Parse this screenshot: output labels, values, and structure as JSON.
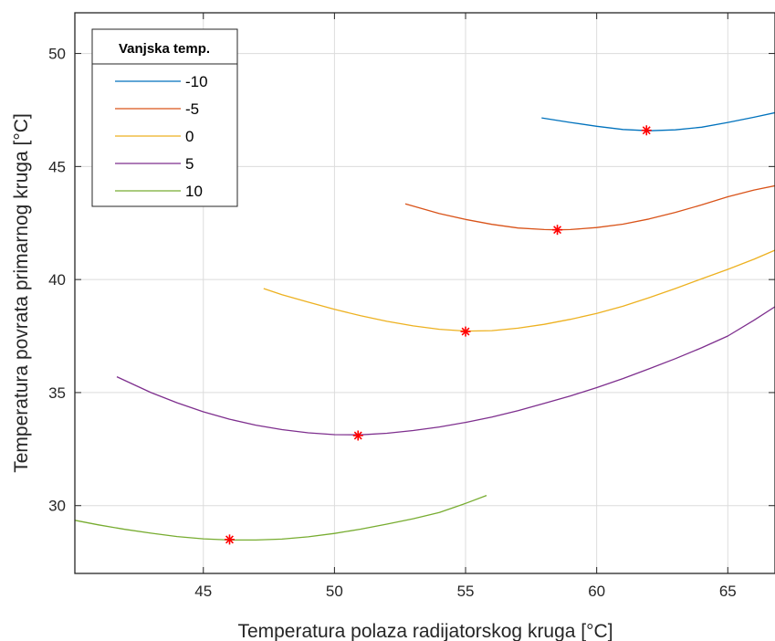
{
  "chart_data": {
    "type": "line",
    "xlabel": "Temperatura polaza radijatorskog kruga [°C]",
    "ylabel": "Temperatura povrata primarnog kruga [°C]",
    "xlim": [
      40.1,
      66.8
    ],
    "ylim": [
      27.0,
      51.8
    ],
    "xticks": [
      45,
      50,
      55,
      60,
      65
    ],
    "yticks": [
      30,
      35,
      40,
      45,
      50
    ],
    "grid": true,
    "legend": {
      "title": "Vanjska temp.",
      "placement": "top-left"
    },
    "series": [
      {
        "name": "-10",
        "color": "#0072BD",
        "x": [
          57.9,
          59.0,
          60.0,
          61.0,
          62.0,
          63.0,
          64.0,
          65.0,
          66.0,
          66.8
        ],
        "y": [
          47.15,
          46.95,
          46.78,
          46.64,
          46.58,
          46.62,
          46.74,
          46.95,
          47.18,
          47.38
        ]
      },
      {
        "name": "-5",
        "color": "#D95319",
        "x": [
          52.7,
          54.0,
          55.0,
          56.0,
          57.0,
          58.0,
          58.5,
          59.0,
          60.0,
          61.0,
          62.0,
          63.0,
          64.0,
          65.0,
          66.0,
          66.8
        ],
        "y": [
          43.35,
          42.92,
          42.66,
          42.44,
          42.28,
          42.21,
          42.2,
          42.21,
          42.3,
          42.45,
          42.68,
          42.97,
          43.3,
          43.66,
          43.96,
          44.15
        ]
      },
      {
        "name": "0",
        "color": "#EDB120",
        "x": [
          47.3,
          48.0,
          49.0,
          50.0,
          51.0,
          52.0,
          53.0,
          54.0,
          55.0,
          56.0,
          57.0,
          58.0,
          59.0,
          60.0,
          61.0,
          62.0,
          63.0,
          64.0,
          65.0,
          66.0,
          66.8
        ],
        "y": [
          39.6,
          39.33,
          39.0,
          38.68,
          38.4,
          38.15,
          37.95,
          37.8,
          37.72,
          37.74,
          37.85,
          38.02,
          38.24,
          38.5,
          38.82,
          39.2,
          39.6,
          40.03,
          40.45,
          40.9,
          41.3
        ]
      },
      {
        "name": "5",
        "color": "#7E2F8E",
        "x": [
          41.7,
          43.0,
          44.0,
          45.0,
          46.0,
          47.0,
          48.0,
          49.0,
          50.0,
          51.0,
          52.0,
          53.0,
          54.0,
          55.0,
          56.0,
          57.0,
          58.0,
          59.0,
          60.0,
          61.0,
          62.0,
          63.0,
          64.0,
          65.0,
          66.0,
          66.8
        ],
        "y": [
          35.7,
          35.0,
          34.55,
          34.15,
          33.82,
          33.56,
          33.36,
          33.22,
          33.14,
          33.13,
          33.2,
          33.32,
          33.48,
          33.68,
          33.92,
          34.2,
          34.52,
          34.85,
          35.22,
          35.62,
          36.05,
          36.5,
          36.98,
          37.5,
          38.2,
          38.8
        ]
      },
      {
        "name": "10",
        "color": "#77AC30",
        "x": [
          40.1,
          41.0,
          42.0,
          43.0,
          44.0,
          45.0,
          46.0,
          47.0,
          48.0,
          49.0,
          50.0,
          51.0,
          52.0,
          53.0,
          54.0,
          55.0,
          55.8
        ],
        "y": [
          29.35,
          29.15,
          28.95,
          28.78,
          28.63,
          28.53,
          28.48,
          28.48,
          28.52,
          28.62,
          28.77,
          28.96,
          29.18,
          29.42,
          29.7,
          30.1,
          30.45
        ]
      }
    ],
    "optima": {
      "marker": "asterisk",
      "color": "#FF0000",
      "points": [
        {
          "x": 61.9,
          "y": 46.6
        },
        {
          "x": 58.5,
          "y": 42.2
        },
        {
          "x": 55.0,
          "y": 37.7
        },
        {
          "x": 50.9,
          "y": 33.1
        },
        {
          "x": 46.0,
          "y": 28.5
        }
      ]
    }
  }
}
